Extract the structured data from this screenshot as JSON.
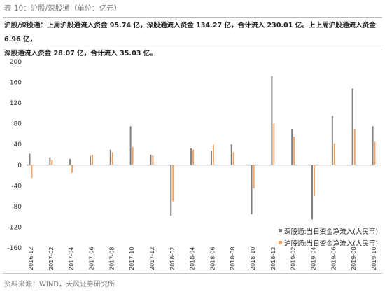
{
  "header": {
    "caption": "表 10：沪股/深股通（单位：亿元）",
    "summary_line1": "沪股/深股通：上周沪股通流入资金 95.74 亿，深股通流入资金 134.27 亿，合计流入 230.01 亿。上上周沪股通流入资金 6.96 亿，",
    "summary_line2": "深股通流入资金 28.07 亿，合计流入 35.03 亿。"
  },
  "footer": {
    "source": "资料来源：WIND，天风证券研究所"
  },
  "colors": {
    "shen": "#7f7f7f",
    "hu": "#f4a460"
  },
  "chart_data": {
    "type": "bar",
    "ylim": [
      -160,
      200
    ],
    "yticks": [
      "200",
      "160",
      "120",
      "80",
      "40",
      "0",
      "-40",
      "-80",
      "-120",
      "-160"
    ],
    "xticks": [
      "2016-12",
      "2017-02",
      "2017-04",
      "2017-06",
      "2017-08",
      "2017-10",
      "2017-12",
      "2018-02",
      "2018-04",
      "2018-06",
      "2018-08",
      "2018-10",
      "2018-12",
      "2019-02",
      "2019-04",
      "2019-06",
      "2019-08",
      "2019-10"
    ],
    "legend": {
      "position": "bottom-right"
    },
    "series": [
      {
        "name": "深股通:当日资金净流入(人民币)",
        "x": [
          "2016-12",
          "2017-02",
          "2017-04",
          "2017-06",
          "2017-08",
          "2017-10",
          "2017-12",
          "2018-02",
          "2018-04",
          "2018-06",
          "2018-08",
          "2018-10",
          "2018-12",
          "2019-02",
          "2019-04",
          "2019-06",
          "2019-08",
          "2019-10"
        ],
        "values": [
          22,
          15,
          12,
          18,
          30,
          75,
          20,
          -98,
          32,
          28,
          40,
          -95,
          172,
          70,
          -105,
          95,
          148,
          75
        ]
      },
      {
        "name": "沪股通:当日资金净流入(人民币)",
        "x": [
          "2016-12",
          "2017-02",
          "2017-04",
          "2017-06",
          "2017-08",
          "2017-10",
          "2017-12",
          "2018-02",
          "2018-04",
          "2018-06",
          "2018-08",
          "2018-10",
          "2018-12",
          "2019-02",
          "2019-04",
          "2019-06",
          "2019-08",
          "2019-10"
        ],
        "values": [
          -25,
          10,
          -15,
          20,
          25,
          35,
          18,
          -70,
          30,
          40,
          25,
          -45,
          80,
          55,
          -60,
          42,
          70,
          45
        ]
      }
    ]
  }
}
